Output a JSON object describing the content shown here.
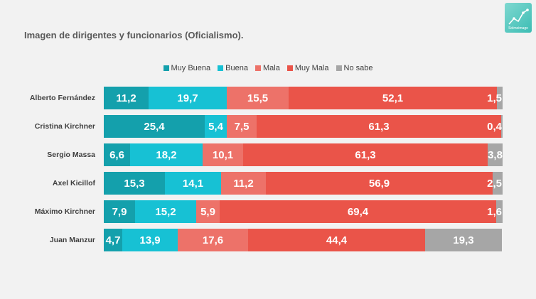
{
  "title": "Imagen de dirigentes y funcionarios (Oficialismo).",
  "logo": {
    "text": "Solmeimago",
    "icon": "trend-line-icon"
  },
  "colors": {
    "Muy Buena": "#14a0ac",
    "Buena": "#17c1d4",
    "Mala": "#ed7269",
    "Muy Mala": "#ea5449",
    "No sabe": "#a6a6a6"
  },
  "chart_data": {
    "type": "bar",
    "orientation": "horizontal",
    "stacked": true,
    "title": "Imagen de dirigentes y funcionarios (Oficialismo).",
    "xlabel": "",
    "ylabel": "",
    "xlim": [
      0,
      100
    ],
    "grid": false,
    "legend_position": "top",
    "categories": [
      "Alberto Fernández",
      "Cristina Kirchner",
      "Sergio Massa",
      "Axel Kicillof",
      "Máximo Kirchner",
      "Juan Manzur"
    ],
    "series": [
      {
        "name": "Muy Buena",
        "values": [
          11.2,
          25.4,
          6.6,
          15.3,
          7.9,
          4.7
        ],
        "labels": [
          "11,2",
          "25,4",
          "6,6",
          "15,3",
          "7,9",
          "4,7"
        ]
      },
      {
        "name": "Buena",
        "values": [
          19.7,
          5.4,
          18.2,
          14.1,
          15.2,
          13.9
        ],
        "labels": [
          "19,7",
          "5,4",
          "18,2",
          "14,1",
          "15,2",
          "13,9"
        ]
      },
      {
        "name": "Mala",
        "values": [
          15.5,
          7.5,
          10.1,
          11.2,
          5.9,
          17.6
        ],
        "labels": [
          "15,5",
          "7,5",
          "10,1",
          "11,2",
          "5,9",
          "17,6"
        ]
      },
      {
        "name": "Muy Mala",
        "values": [
          52.1,
          61.3,
          61.3,
          56.9,
          69.4,
          44.4
        ],
        "labels": [
          "52,1",
          "61,3",
          "61,3",
          "56,9",
          "69,4",
          "44,4"
        ]
      },
      {
        "name": "No sabe",
        "values": [
          1.5,
          0.4,
          3.8,
          2.5,
          1.6,
          19.3
        ],
        "labels": [
          "1,5",
          "0,4",
          "3,8",
          "2,5",
          "1,6",
          "19,3"
        ]
      }
    ]
  }
}
